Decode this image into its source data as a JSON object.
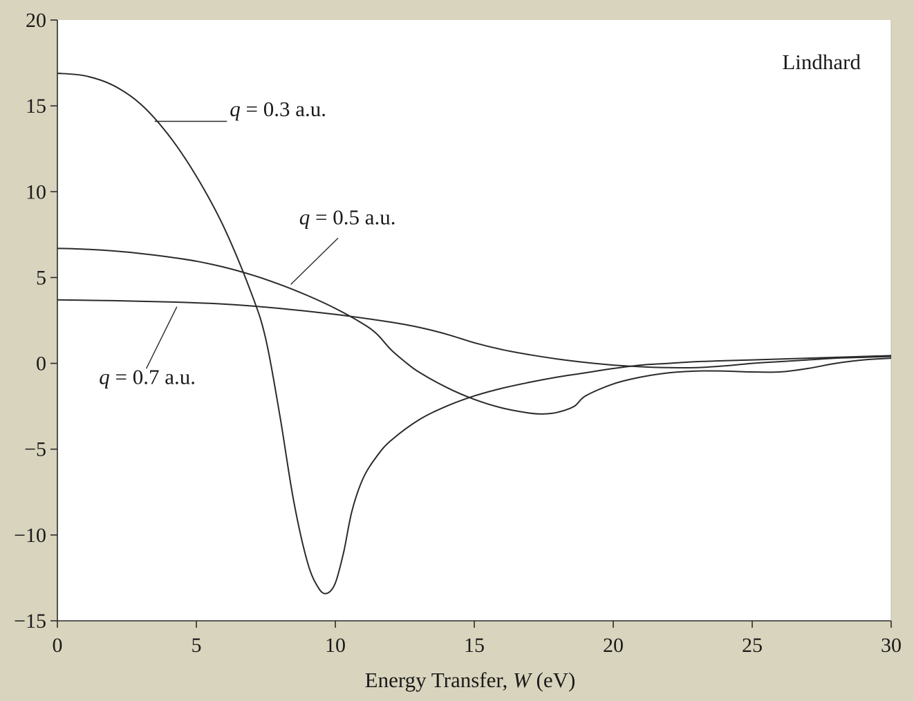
{
  "chart_data": {
    "type": "line",
    "title": "",
    "xlabel_prefix": "Energy Transfer, ",
    "xlabel_var": "W",
    "xlabel_suffix": " (eV)",
    "ylabel": "",
    "xlim": [
      0,
      30
    ],
    "ylim": [
      -15,
      20
    ],
    "x_ticks": [
      0,
      5,
      10,
      15,
      20,
      25,
      30
    ],
    "y_ticks": [
      20,
      15,
      10,
      5,
      0,
      -5,
      -10,
      -15
    ],
    "y_tick_labels": [
      "20",
      "15",
      "10",
      "5",
      "0",
      "−5",
      "−10",
      "−15"
    ],
    "grid": false,
    "corner_label": "Lindhard",
    "series": [
      {
        "name": "q = 0.3 a.u.",
        "label_var": "q",
        "label_rest": " = 0.3 a.u.",
        "label_at": [
          6.2,
          14.4
        ],
        "leader_from": [
          3.5,
          14.1
        ],
        "leader_to": [
          6.1,
          14.1
        ],
        "points": [
          [
            0,
            16.9
          ],
          [
            1,
            16.75
          ],
          [
            2,
            16.2
          ],
          [
            3,
            15.1
          ],
          [
            4,
            13.3
          ],
          [
            5,
            10.9
          ],
          [
            6,
            7.9
          ],
          [
            7,
            4.0
          ],
          [
            7.5,
            1.4
          ],
          [
            8,
            -3.0
          ],
          [
            8.5,
            -8.0
          ],
          [
            9,
            -11.6
          ],
          [
            9.4,
            -13.1
          ],
          [
            9.7,
            -13.4
          ],
          [
            10,
            -12.8
          ],
          [
            10.3,
            -11.0
          ],
          [
            10.6,
            -8.6
          ],
          [
            11,
            -6.7
          ],
          [
            11.5,
            -5.4
          ],
          [
            12,
            -4.5
          ],
          [
            13,
            -3.3
          ],
          [
            14,
            -2.5
          ],
          [
            15,
            -1.9
          ],
          [
            16,
            -1.45
          ],
          [
            17,
            -1.1
          ],
          [
            18,
            -0.8
          ],
          [
            19,
            -0.55
          ],
          [
            20,
            -0.3
          ],
          [
            21,
            -0.1
          ],
          [
            22,
            0.0
          ],
          [
            23,
            0.1
          ],
          [
            24,
            0.15
          ],
          [
            25,
            0.2
          ],
          [
            26,
            0.25
          ],
          [
            27,
            0.3
          ],
          [
            28,
            0.35
          ],
          [
            29,
            0.4
          ],
          [
            30,
            0.45
          ]
        ]
      },
      {
        "name": "q = 0.5 a.u.",
        "label_var": "q",
        "label_rest": " = 0.5 a.u.",
        "label_at": [
          8.7,
          8.1
        ],
        "leader_from": [
          8.4,
          4.6
        ],
        "leader_to": [
          10.1,
          7.3
        ],
        "points": [
          [
            0,
            6.7
          ],
          [
            1,
            6.65
          ],
          [
            2,
            6.55
          ],
          [
            3,
            6.4
          ],
          [
            4,
            6.2
          ],
          [
            5,
            5.95
          ],
          [
            6,
            5.6
          ],
          [
            7,
            5.15
          ],
          [
            8,
            4.6
          ],
          [
            9,
            3.95
          ],
          [
            10,
            3.2
          ],
          [
            11,
            2.3
          ],
          [
            11.5,
            1.7
          ],
          [
            12,
            0.8
          ],
          [
            12.5,
            0.1
          ],
          [
            13,
            -0.5
          ],
          [
            14,
            -1.4
          ],
          [
            15,
            -2.1
          ],
          [
            16,
            -2.6
          ],
          [
            17,
            -2.9
          ],
          [
            17.5,
            -2.95
          ],
          [
            18,
            -2.85
          ],
          [
            18.6,
            -2.5
          ],
          [
            19,
            -1.9
          ],
          [
            20,
            -1.2
          ],
          [
            21,
            -0.8
          ],
          [
            22,
            -0.55
          ],
          [
            23,
            -0.45
          ],
          [
            24,
            -0.45
          ],
          [
            25,
            -0.5
          ],
          [
            26,
            -0.5
          ],
          [
            27,
            -0.3
          ],
          [
            28,
            0.0
          ],
          [
            29,
            0.2
          ],
          [
            30,
            0.3
          ]
        ]
      },
      {
        "name": "q = 0.7 a.u.",
        "label_var": "q",
        "label_rest": " = 0.7 a.u.",
        "label_at": [
          1.5,
          -1.2
        ],
        "leader_from": [
          3.2,
          -0.3
        ],
        "leader_to": [
          4.3,
          3.3
        ],
        "points": [
          [
            0,
            3.7
          ],
          [
            2,
            3.65
          ],
          [
            4,
            3.58
          ],
          [
            6,
            3.45
          ],
          [
            8,
            3.2
          ],
          [
            10,
            2.85
          ],
          [
            12,
            2.4
          ],
          [
            13,
            2.1
          ],
          [
            14,
            1.7
          ],
          [
            15,
            1.2
          ],
          [
            16,
            0.8
          ],
          [
            17,
            0.5
          ],
          [
            18,
            0.25
          ],
          [
            19,
            0.05
          ],
          [
            20,
            -0.1
          ],
          [
            21,
            -0.2
          ],
          [
            22,
            -0.25
          ],
          [
            23,
            -0.25
          ],
          [
            24,
            -0.15
          ],
          [
            25,
            0.0
          ],
          [
            26,
            0.1
          ],
          [
            27,
            0.2
          ],
          [
            28,
            0.3
          ],
          [
            29,
            0.35
          ],
          [
            30,
            0.4
          ]
        ]
      }
    ]
  }
}
